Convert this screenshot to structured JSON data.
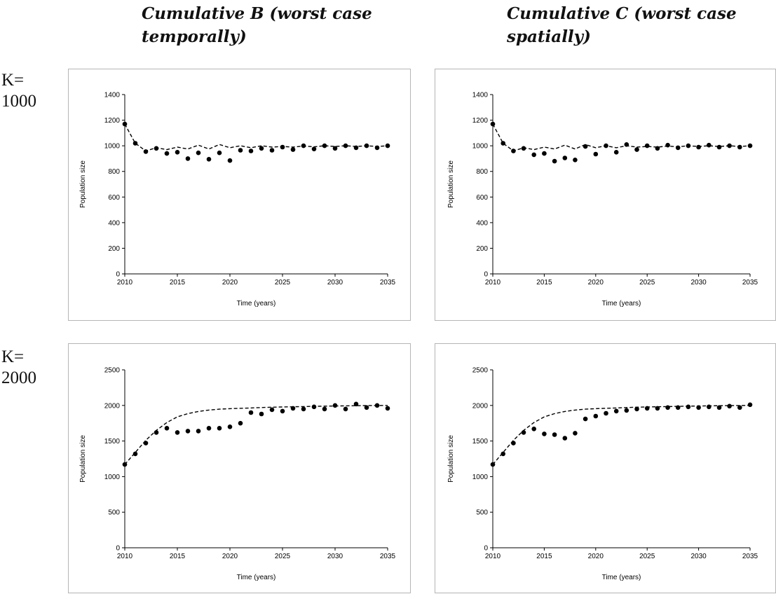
{
  "column_titles": [
    {
      "line1": "Cumulative B (worst case",
      "line2": "temporally)"
    },
    {
      "line1": "Cumulative C (worst case",
      "line2": "spatially)"
    }
  ],
  "row_labels": [
    {
      "line1": "K=",
      "line2": "1000"
    },
    {
      "line1": "K=",
      "line2": "2000"
    }
  ],
  "chart_data": [
    {
      "type": "scatter",
      "panel": "K=1000 / Cumulative B",
      "xlabel": "Time (years)",
      "ylabel": "Population size",
      "xlim": [
        2010,
        2035
      ],
      "ylim": [
        0,
        1400
      ],
      "xticks": [
        2010,
        2015,
        2020,
        2025,
        2030,
        2035
      ],
      "yticks": [
        0,
        200,
        400,
        600,
        800,
        1000,
        1200,
        1400
      ],
      "series": [
        {
          "style": "dashed-line",
          "x": [
            2010,
            2011,
            2012,
            2013,
            2014,
            2015,
            2016,
            2017,
            2018,
            2019,
            2020,
            2021,
            2022,
            2023,
            2024,
            2025,
            2026,
            2027,
            2028,
            2029,
            2030,
            2031,
            2032,
            2033,
            2034,
            2035
          ],
          "y": [
            1170,
            1020,
            960,
            985,
            970,
            990,
            975,
            1005,
            975,
            1010,
            985,
            1000,
            985,
            1000,
            990,
            995,
            990,
            998,
            992,
            1000,
            995,
            1000,
            995,
            1000,
            995,
            1000
          ]
        },
        {
          "style": "points",
          "x": [
            2010,
            2011,
            2012,
            2013,
            2014,
            2015,
            2016,
            2017,
            2018,
            2019,
            2020,
            2021,
            2022,
            2023,
            2024,
            2025,
            2026,
            2027,
            2028,
            2029,
            2030,
            2031,
            2032,
            2033,
            2034,
            2035
          ],
          "y": [
            1170,
            1020,
            955,
            980,
            940,
            950,
            900,
            945,
            895,
            945,
            885,
            965,
            960,
            980,
            965,
            990,
            970,
            1000,
            975,
            1000,
            980,
            1000,
            985,
            1000,
            985,
            1000
          ]
        }
      ]
    },
    {
      "type": "scatter",
      "panel": "K=1000 / Cumulative C",
      "xlabel": "Time (years)",
      "ylabel": "Population size",
      "xlim": [
        2010,
        2035
      ],
      "ylim": [
        0,
        1400
      ],
      "xticks": [
        2010,
        2015,
        2020,
        2025,
        2030,
        2035
      ],
      "yticks": [
        0,
        200,
        400,
        600,
        800,
        1000,
        1200,
        1400
      ],
      "series": [
        {
          "style": "dashed-line",
          "x": [
            2010,
            2011,
            2012,
            2013,
            2014,
            2015,
            2016,
            2017,
            2018,
            2019,
            2020,
            2021,
            2022,
            2023,
            2024,
            2025,
            2026,
            2027,
            2028,
            2029,
            2030,
            2031,
            2032,
            2033,
            2034,
            2035
          ],
          "y": [
            1170,
            1020,
            960,
            985,
            970,
            990,
            975,
            1005,
            975,
            1010,
            985,
            1000,
            985,
            1000,
            990,
            995,
            990,
            998,
            992,
            1000,
            995,
            1000,
            995,
            1000,
            995,
            1000
          ]
        },
        {
          "style": "points",
          "x": [
            2010,
            2011,
            2012,
            2013,
            2014,
            2015,
            2016,
            2017,
            2018,
            2019,
            2020,
            2021,
            2022,
            2023,
            2024,
            2025,
            2026,
            2027,
            2028,
            2029,
            2030,
            2031,
            2032,
            2033,
            2034,
            2035
          ],
          "y": [
            1170,
            1020,
            960,
            980,
            930,
            940,
            880,
            905,
            890,
            995,
            935,
            1000,
            950,
            1010,
            970,
            1000,
            980,
            1005,
            985,
            1000,
            990,
            1005,
            990,
            1000,
            990,
            1000
          ]
        }
      ]
    },
    {
      "type": "scatter",
      "panel": "K=2000 / Cumulative B",
      "xlabel": "Time (years)",
      "ylabel": "Population size",
      "xlim": [
        2010,
        2035
      ],
      "ylim": [
        0,
        2500
      ],
      "xticks": [
        2010,
        2015,
        2020,
        2025,
        2030,
        2035
      ],
      "yticks": [
        0,
        500,
        1000,
        1500,
        2000,
        2500
      ],
      "series": [
        {
          "style": "dashed-line",
          "x": [
            2010,
            2011,
            2012,
            2013,
            2014,
            2015,
            2016,
            2017,
            2018,
            2019,
            2020,
            2021,
            2022,
            2023,
            2024,
            2025,
            2026,
            2027,
            2028,
            2029,
            2030,
            2031,
            2032,
            2033,
            2034,
            2035
          ],
          "y": [
            1170,
            1340,
            1510,
            1650,
            1760,
            1840,
            1885,
            1915,
            1935,
            1948,
            1955,
            1960,
            1965,
            1970,
            1975,
            1978,
            1981,
            1984,
            1987,
            1990,
            1992,
            1994,
            1996,
            1998,
            1999,
            2000
          ]
        },
        {
          "style": "points",
          "x": [
            2010,
            2011,
            2012,
            2013,
            2014,
            2015,
            2016,
            2017,
            2018,
            2019,
            2020,
            2021,
            2022,
            2023,
            2024,
            2025,
            2026,
            2027,
            2028,
            2029,
            2030,
            2031,
            2032,
            2033,
            2034,
            2035
          ],
          "y": [
            1170,
            1320,
            1470,
            1620,
            1680,
            1620,
            1640,
            1640,
            1680,
            1680,
            1700,
            1750,
            1900,
            1880,
            1940,
            1920,
            1960,
            1950,
            1980,
            1950,
            2000,
            1950,
            2020,
            1970,
            2000,
            1960
          ]
        }
      ]
    },
    {
      "type": "scatter",
      "panel": "K=2000 / Cumulative C",
      "xlabel": "Time (years)",
      "ylabel": "Population size",
      "xlim": [
        2010,
        2035
      ],
      "ylim": [
        0,
        2500
      ],
      "xticks": [
        2010,
        2015,
        2020,
        2025,
        2030,
        2035
      ],
      "yticks": [
        0,
        500,
        1000,
        1500,
        2000,
        2500
      ],
      "series": [
        {
          "style": "dashed-line",
          "x": [
            2010,
            2011,
            2012,
            2013,
            2014,
            2015,
            2016,
            2017,
            2018,
            2019,
            2020,
            2021,
            2022,
            2023,
            2024,
            2025,
            2026,
            2027,
            2028,
            2029,
            2030,
            2031,
            2032,
            2033,
            2034,
            2035
          ],
          "y": [
            1170,
            1340,
            1510,
            1650,
            1760,
            1840,
            1885,
            1915,
            1935,
            1948,
            1955,
            1960,
            1965,
            1970,
            1975,
            1978,
            1981,
            1984,
            1987,
            1990,
            1992,
            1994,
            1996,
            1998,
            1999,
            2000
          ]
        },
        {
          "style": "points",
          "x": [
            2010,
            2011,
            2012,
            2013,
            2014,
            2015,
            2016,
            2017,
            2018,
            2019,
            2020,
            2021,
            2022,
            2023,
            2024,
            2025,
            2026,
            2027,
            2028,
            2029,
            2030,
            2031,
            2032,
            2033,
            2034,
            2035
          ],
          "y": [
            1170,
            1320,
            1470,
            1620,
            1670,
            1600,
            1590,
            1540,
            1610,
            1810,
            1850,
            1890,
            1920,
            1930,
            1950,
            1960,
            1960,
            1970,
            1970,
            1980,
            1970,
            1980,
            1970,
            1990,
            1970,
            2010
          ]
        }
      ]
    }
  ]
}
